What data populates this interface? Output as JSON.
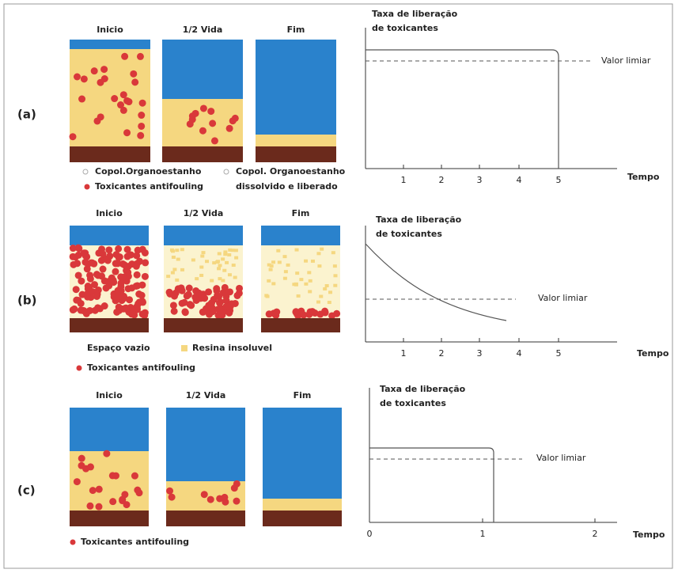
{
  "figure": {
    "rows": [
      {
        "label": "(a)",
        "stages": [
          "Inicio",
          "1/2 Vida",
          "Fim"
        ],
        "legend": [
          "Copol.Organoestanho",
          "Toxicantes antifouling",
          "Copol. Organoestanho",
          "dissolvido e liberado"
        ],
        "graph": {
          "y_title": [
            "Taxa de liberação",
            "de toxicantes"
          ],
          "threshold": "Valor limiar",
          "x_label": "Tempo",
          "x_ticks": [
            1,
            2,
            3,
            4,
            5
          ]
        }
      },
      {
        "label": "(b)",
        "stages": [
          "Inicio",
          "1/2 Vida",
          "Fim"
        ],
        "legend": [
          "Espaço vazio",
          "Resina insoluvel",
          "Toxicantes antifouling"
        ],
        "graph": {
          "y_title": [
            "Taxa de liberação",
            "de toxicantes"
          ],
          "threshold": "Valor limiar",
          "x_label": "Tempo",
          "x_ticks": [
            1,
            2,
            3,
            4,
            5
          ]
        }
      },
      {
        "label": "(c)",
        "stages": [
          "Inicio",
          "1/2 Vida",
          "Fim"
        ],
        "legend": [
          "Toxicantes antifouling"
        ],
        "graph": {
          "y_title": [
            "Taxa de liberação",
            "de toxicantes"
          ],
          "threshold": "Valor limiar",
          "x_label": "Tempo",
          "x_ticks": [
            0,
            1,
            2
          ]
        }
      }
    ]
  }
}
